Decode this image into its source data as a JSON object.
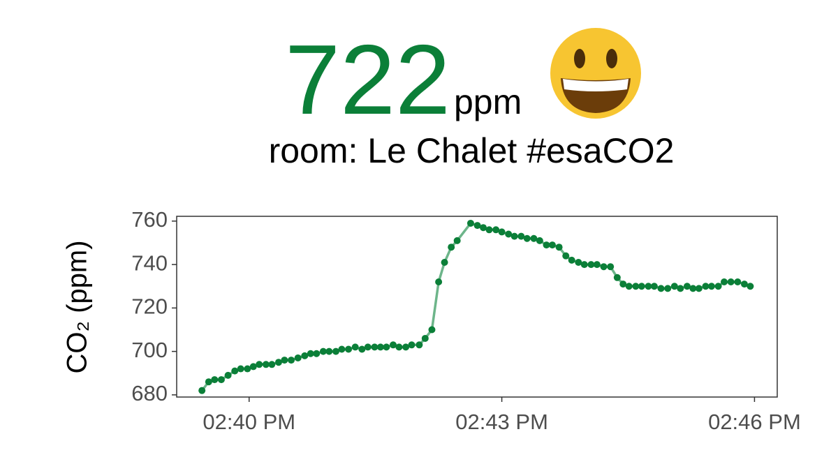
{
  "header": {
    "value": 722,
    "unit": "ppm",
    "room": "room: Le Chalet #esaCO2"
  },
  "chart_data": {
    "type": "line",
    "ylabel": "CO₂ (ppm)",
    "x": [
      879.44,
      879.52,
      879.59,
      879.67,
      879.75,
      879.83,
      879.9,
      879.98,
      880.05,
      880.12,
      880.2,
      880.27,
      880.35,
      880.42,
      880.5,
      880.58,
      880.66,
      880.73,
      880.8,
      880.88,
      880.95,
      881.03,
      881.1,
      881.18,
      881.26,
      881.34,
      881.41,
      881.49,
      881.56,
      881.63,
      881.71,
      881.78,
      881.86,
      881.93,
      882.02,
      882.09,
      882.17,
      882.25,
      882.32,
      882.4,
      882.47,
      882.63,
      882.71,
      882.78,
      882.85,
      882.93,
      883.0,
      883.08,
      883.15,
      883.23,
      883.3,
      883.38,
      883.45,
      883.53,
      883.6,
      883.68,
      883.76,
      883.83,
      883.91,
      883.98,
      884.06,
      884.13,
      884.21,
      884.29,
      884.37,
      884.44,
      884.51,
      884.59,
      884.66,
      884.74,
      884.81,
      884.89,
      884.97,
      885.05,
      885.12,
      885.2,
      885.27,
      885.34,
      885.42,
      885.49,
      885.57,
      885.64,
      885.72,
      885.8,
      885.88,
      885.95
    ],
    "values": [
      682,
      686,
      687,
      687,
      689,
      691,
      692,
      692,
      693,
      694,
      694,
      694,
      695,
      696,
      696,
      697,
      698,
      699,
      699,
      700,
      700,
      700,
      701,
      701,
      702,
      701,
      702,
      702,
      702,
      702,
      703,
      702,
      702,
      703,
      703,
      706,
      710,
      732,
      741,
      748,
      751,
      759,
      758,
      757,
      756,
      756,
      755,
      754,
      753,
      753,
      752,
      752,
      751,
      749,
      749,
      748,
      744,
      742,
      741,
      740,
      740,
      740,
      739,
      739,
      734,
      731,
      730,
      730,
      730,
      730,
      730,
      729,
      729,
      730,
      729,
      730,
      729,
      729,
      730,
      730,
      730,
      732,
      732,
      732,
      731,
      730
    ],
    "color": "#0b7f38",
    "line_color": "#6db58a",
    "xlim": [
      879.14,
      886.27
    ],
    "xticks": [
      {
        "value": 880,
        "label": "02:40 PM"
      },
      {
        "value": 883,
        "label": "02:43 PM"
      },
      {
        "value": 886,
        "label": "02:46 PM"
      }
    ],
    "ylim": [
      679,
      762.2
    ],
    "yticks": [
      680,
      700,
      720,
      740,
      760
    ],
    "grid": false
  }
}
